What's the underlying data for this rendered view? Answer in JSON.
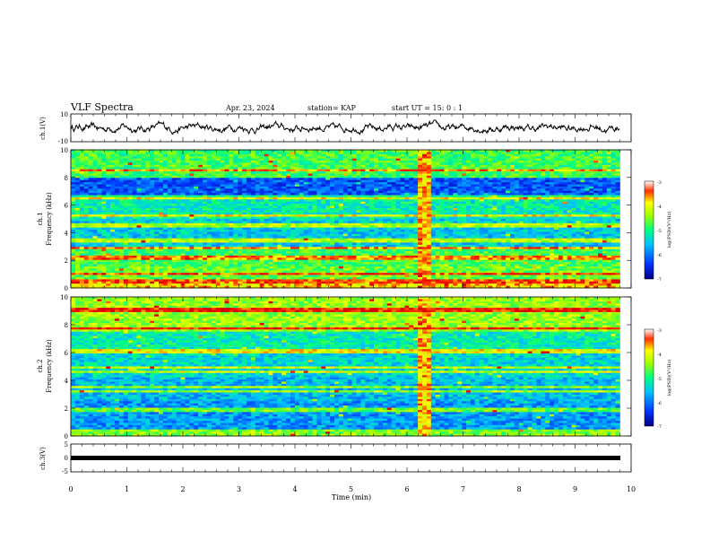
{
  "header": {
    "title": "VLF Spectra",
    "date": "Apr. 23, 2024",
    "station": "station= KAP",
    "start": "start UT = 15: 0 : 1"
  },
  "colors": {
    "spectrogram_colormap": [
      "#ffffff",
      "#0000a0",
      "#0040ff",
      "#00c0ff",
      "#00e0a0",
      "#20ff40",
      "#a0ff00",
      "#ffff00",
      "#ff8000",
      "#ff0000",
      "#e00000"
    ],
    "waveform": "#000000"
  },
  "chart_data": [
    {
      "type": "line",
      "id": "ch1-waveform",
      "ylabel": "ch.1(V)",
      "ylim": [
        -10,
        10
      ],
      "ytick_labels": [
        "10",
        "-10"
      ],
      "xlim": [
        0,
        10
      ],
      "x_range_data": [
        0,
        9.8
      ],
      "description_values": "oscillating voltage roughly between -4 and 5 V"
    },
    {
      "type": "heatmap",
      "id": "ch1-spectrogram",
      "ylabel_top": "ch.1",
      "ylabel": "Frequency (kHz)",
      "ylim": [
        0,
        10
      ],
      "ytick_labels": [
        "0",
        "2",
        "4",
        "6",
        "8",
        "10"
      ],
      "xlim": [
        0,
        10
      ],
      "colorbar_label": "log(PSD)(V²/Hz)",
      "colorbar_range": [
        -7,
        -3
      ],
      "colorbar_ticks": [
        "-3",
        "-4",
        "-5",
        "-6",
        "-7"
      ],
      "bands": [
        {
          "from": 0,
          "to": 0.3,
          "level": -3.8
        },
        {
          "from": 0.3,
          "to": 1.5,
          "level": -4.6
        },
        {
          "from": 1.5,
          "to": 3,
          "level": -4.8
        },
        {
          "from": 3,
          "to": 5,
          "level": -5.5
        },
        {
          "from": 5,
          "to": 6.5,
          "level": -5.2
        },
        {
          "from": 6.5,
          "to": 8,
          "level": -6.2
        },
        {
          "from": 8,
          "to": 10,
          "level": -4.8
        }
      ],
      "lines_khz": [
        0.5,
        1.0,
        2.2,
        2.9,
        3.4,
        4.5,
        5.2,
        6.6,
        8.5
      ],
      "burst_minutes": [
        6.2,
        6.4
      ]
    },
    {
      "type": "heatmap",
      "id": "ch2-spectrogram",
      "ylabel_top": "ch.2",
      "ylabel": "Frequency (kHz)",
      "ylim": [
        0,
        10
      ],
      "ytick_labels": [
        "0",
        "2",
        "4",
        "6",
        "8",
        "10"
      ],
      "xlim": [
        0,
        10
      ],
      "colorbar_label": "log(PSD)(V²/Hz)",
      "colorbar_range": [
        -7,
        -3
      ],
      "colorbar_ticks": [
        "-3",
        "-4",
        "-5",
        "-6",
        "-7"
      ],
      "bands": [
        {
          "from": 0,
          "to": 0.5,
          "level": -4.5
        },
        {
          "from": 0.5,
          "to": 2.5,
          "level": -5.8
        },
        {
          "from": 2.5,
          "to": 4.2,
          "level": -5.6
        },
        {
          "from": 4.2,
          "to": 6,
          "level": -5.4
        },
        {
          "from": 6,
          "to": 7.5,
          "level": -5.2
        },
        {
          "from": 7.5,
          "to": 10,
          "level": -4.4
        }
      ],
      "lines_khz": [
        1.9,
        3.2,
        3.5,
        4.6,
        4.9,
        6.1,
        7.7,
        9.1
      ],
      "burst_minutes": [
        6.2,
        6.4
      ]
    },
    {
      "type": "line",
      "id": "ch3-waveform",
      "ylabel": "ch.3(V)",
      "ylim": [
        -5,
        5
      ],
      "ytick_labels": [
        "5",
        "0",
        "-5"
      ],
      "xlim": [
        0,
        10
      ],
      "value": -0.3,
      "x_range_data": [
        0,
        9.8
      ]
    }
  ],
  "xaxis": {
    "label": "Time (min)",
    "tick_labels": [
      "0",
      "1",
      "2",
      "3",
      "4",
      "5",
      "6",
      "7",
      "8",
      "9",
      "10"
    ]
  }
}
